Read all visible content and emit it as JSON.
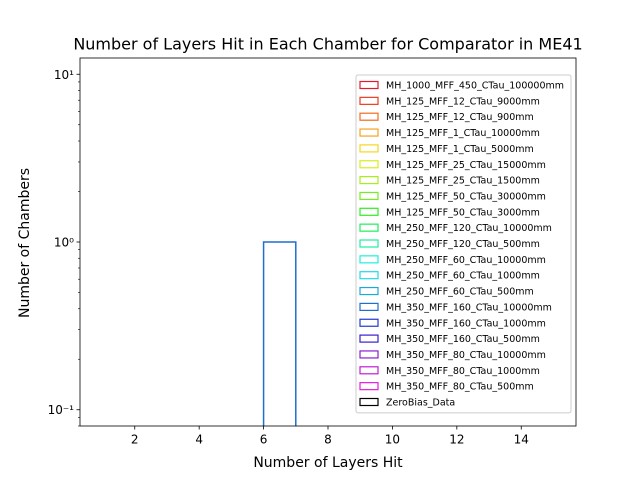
{
  "chart_data": {
    "type": "histogram-step",
    "title": "Number of Layers Hit in Each Chamber for Comparator in ME41",
    "xlabel": "Number of Layers Hit",
    "ylabel": "Number of Chambers",
    "xscale": "linear",
    "yscale": "log",
    "xlim": [
      0.3,
      15.7
    ],
    "ylim": [
      0.08,
      12.5
    ],
    "xticks": [
      2,
      4,
      6,
      8,
      10,
      12,
      14
    ],
    "xtick_labels": [
      "2",
      "4",
      "6",
      "8",
      "10",
      "12",
      "14"
    ],
    "yticks": [
      0.1,
      1,
      10
    ],
    "ytick_labels": [
      "10⁻¹",
      "10⁰",
      "10¹"
    ],
    "grid": false,
    "legend_position": "top-right",
    "series": [
      {
        "name": "MH_1000_MFF_450_CTau_100000mm",
        "color": "#e6192e",
        "bins": []
      },
      {
        "name": "MH_125_MFF_12_CTau_9000mm",
        "color": "#ee3b1e",
        "bins": []
      },
      {
        "name": "MH_125_MFF_12_CTau_900mm",
        "color": "#f26a1f",
        "bins": []
      },
      {
        "name": "MH_125_MFF_1_CTau_10000mm",
        "color": "#f7a21e",
        "bins": []
      },
      {
        "name": "MH_125_MFF_1_CTau_5000mm",
        "color": "#f7d61e",
        "bins": []
      },
      {
        "name": "MH_125_MFF_25_CTau_15000mm",
        "color": "#d8ee1e",
        "bins": []
      },
      {
        "name": "MH_125_MFF_25_CTau_1500mm",
        "color": "#a8ee1e",
        "bins": []
      },
      {
        "name": "MH_125_MFF_50_CTau_30000mm",
        "color": "#73ee1e",
        "bins": []
      },
      {
        "name": "MH_125_MFF_50_CTau_3000mm",
        "color": "#2eee1e",
        "bins": []
      },
      {
        "name": "MH_250_MFF_120_CTau_10000mm",
        "color": "#1eee5a",
        "bins": []
      },
      {
        "name": "MH_250_MFF_120_CTau_500mm",
        "color": "#1eeea0",
        "bins": []
      },
      {
        "name": "MH_250_MFF_60_CTau_10000mm",
        "color": "#1eeee0",
        "bins": []
      },
      {
        "name": "MH_250_MFF_60_CTau_1000mm",
        "color": "#1ed8ee",
        "bins": []
      },
      {
        "name": "MH_250_MFF_60_CTau_500mm",
        "color": "#1ea8d8",
        "bins": []
      },
      {
        "name": "MH_350_MFF_160_CTau_10000mm",
        "color": "#1e6fd0",
        "bins": [
          {
            "x0": 6,
            "x1": 7,
            "y": 1
          }
        ]
      },
      {
        "name": "MH_350_MFF_160_CTau_1000mm",
        "color": "#1e3ad0",
        "bins": []
      },
      {
        "name": "MH_350_MFF_160_CTau_500mm",
        "color": "#3a1ed0",
        "bins": []
      },
      {
        "name": "MH_350_MFF_80_CTau_10000mm",
        "color": "#8a1ed0",
        "bins": []
      },
      {
        "name": "MH_350_MFF_80_CTau_1000mm",
        "color": "#c01ed0",
        "bins": []
      },
      {
        "name": "MH_350_MFF_80_CTau_500mm",
        "color": "#e01ee0",
        "bins": []
      },
      {
        "name": "ZeroBias_Data",
        "color": "#000000",
        "bins": []
      }
    ]
  }
}
